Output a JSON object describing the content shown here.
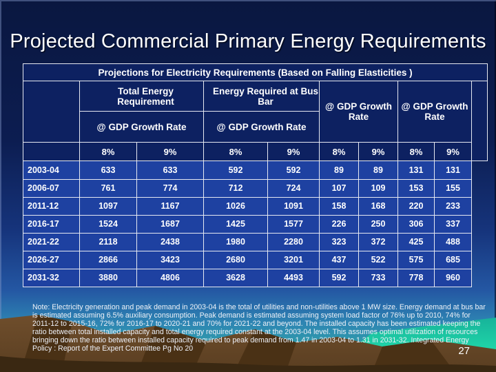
{
  "slide": {
    "title": "Projected Commercial Primary Energy Requirements",
    "page_number": "27",
    "note": "Note: Electricity generation and peak demand in 2003-04 is the total of utilities and non-utilities above 1 MW size.  Energy demand at bus bar is estimated assuming 6.5% auxiliary consumption.  Peak demand is estimated assuming system load factor of 76% up to 2010, 74% for 2011-12 to 2015-16, 72% for 2016-17 to 2020-21 and 70% for 2021-22 and beyond.  The installed capacity has been estimated keeping the ratio between total installed capacity and total energy required constant at the 2003-04 level.  This assumes optimal utilization of resources bringing down the ratio between installed capacity required to peak demand from 1.47 in 2003-04 to 1.31 in 2031-32. Integrated Energy Policy : Report of the Expert Committee Pg No 20"
  },
  "table": {
    "title": "Projections for Electricity Requirements (Based on Falling Elasticities )",
    "col_groups": [
      {
        "label": "Total Energy Requirement",
        "sub_label": "@ GDP Growth Rate"
      },
      {
        "label": "Energy Required at Bus Bar",
        "sub_label": "@ GDP Growth Rate"
      },
      {
        "label": "@ GDP Growth Rate"
      },
      {
        "label": "@ GDP Growth Rate"
      }
    ],
    "rate_headers": [
      "8%",
      "9%",
      "8%",
      "9%",
      "8%",
      "9%",
      "8%",
      "9%"
    ],
    "rows": [
      {
        "period": "2003-04",
        "values": [
          "633",
          "633",
          "592",
          "592",
          "89",
          "89",
          "131",
          "131"
        ]
      },
      {
        "period": "2006-07",
        "values": [
          "761",
          "774",
          "712",
          "724",
          "107",
          "109",
          "153",
          "155"
        ]
      },
      {
        "period": "2011-12",
        "values": [
          "1097",
          "1167",
          "1026",
          "1091",
          "158",
          "168",
          "220",
          "233"
        ]
      },
      {
        "period": "2016-17",
        "values": [
          "1524",
          "1687",
          "1425",
          "1577",
          "226",
          "250",
          "306",
          "337"
        ]
      },
      {
        "period": "2021-22",
        "values": [
          "2118",
          "2438",
          "1980",
          "2280",
          "323",
          "372",
          "425",
          "488"
        ]
      },
      {
        "period": "2026-27",
        "values": [
          "2866",
          "3423",
          "2680",
          "3201",
          "437",
          "522",
          "575",
          "685"
        ]
      },
      {
        "period": "2031-32",
        "values": [
          "3880",
          "4806",
          "3628",
          "4493",
          "592",
          "733",
          "778",
          "960"
        ]
      }
    ]
  },
  "colors": {
    "slide_bg_top": "#0a1740",
    "slide_bg_mid": "#16347c",
    "slide_bg_lower": "#2e86b3",
    "table_header_bg": "#0d2161",
    "table_data_bg": "#1e41a1",
    "table_border": "#e7eaf2",
    "text": "#ffffff",
    "mountain_light": "#6f4e2c",
    "mountain_dark": "#4a3115",
    "mountain_foreground": "#3a2812",
    "teal_bright": "#25ecb2",
    "teal_mid": "#17b39a"
  }
}
